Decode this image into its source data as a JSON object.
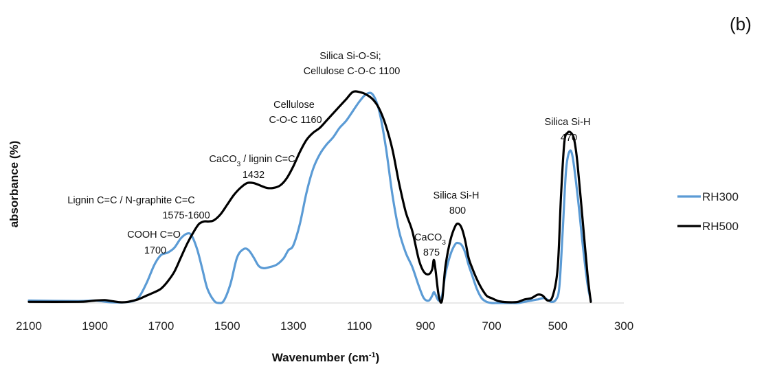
{
  "panel_label": "(b)",
  "chart_data": {
    "type": "line",
    "xlabel": "Wavenumber (cm",
    "xlabel_sup": "-1",
    "xlabel_tail": ")",
    "ylabel": "absorbance (%)",
    "xlim": [
      2100,
      300
    ],
    "x_reversed": true,
    "ylim": [
      0,
      1
    ],
    "x_ticks": [
      "2100",
      "1900",
      "1700",
      "1500",
      "1300",
      "1100",
      "900",
      "700",
      "500",
      "300"
    ],
    "grid": false,
    "legend_position": "right",
    "colors": {
      "RH300": "#5b9bd5",
      "RH500": "#000000"
    },
    "series": [
      {
        "name": "RH300",
        "x": [
          2100,
          1950,
          1900,
          1850,
          1800,
          1770,
          1745,
          1720,
          1700,
          1680,
          1660,
          1640,
          1620,
          1607,
          1590,
          1575,
          1560,
          1540,
          1525,
          1510,
          1490,
          1470,
          1450,
          1435,
          1420,
          1405,
          1390,
          1370,
          1350,
          1330,
          1315,
          1300,
          1280,
          1260,
          1240,
          1220,
          1200,
          1180,
          1160,
          1140,
          1120,
          1100,
          1080,
          1060,
          1040,
          1020,
          1000,
          980,
          960,
          940,
          920,
          905,
          890,
          880,
          875,
          870,
          860,
          850,
          840,
          825,
          810,
          800,
          790,
          780,
          770,
          760,
          745,
          730,
          715,
          700,
          680,
          650,
          620,
          600,
          580,
          560,
          540,
          520,
          505,
          495,
          485,
          475,
          465,
          455,
          440,
          425,
          410,
          400
        ],
        "y": [
          0.01,
          0.008,
          0.01,
          0.003,
          0.004,
          0.02,
          0.08,
          0.16,
          0.2,
          0.21,
          0.23,
          0.27,
          0.29,
          0.28,
          0.22,
          0.14,
          0.06,
          0.01,
          0.0,
          0.01,
          0.08,
          0.19,
          0.225,
          0.22,
          0.19,
          0.155,
          0.145,
          0.15,
          0.16,
          0.185,
          0.22,
          0.24,
          0.33,
          0.46,
          0.56,
          0.62,
          0.66,
          0.69,
          0.73,
          0.76,
          0.8,
          0.84,
          0.87,
          0.87,
          0.8,
          0.65,
          0.45,
          0.3,
          0.21,
          0.15,
          0.07,
          0.02,
          0.01,
          0.03,
          0.045,
          0.035,
          0.01,
          0.03,
          0.12,
          0.2,
          0.245,
          0.25,
          0.24,
          0.21,
          0.16,
          0.12,
          0.06,
          0.02,
          0.005,
          0.0,
          0.0,
          0.0,
          0.0,
          0.005,
          0.01,
          0.015,
          0.02,
          0.005,
          0.015,
          0.07,
          0.3,
          0.55,
          0.63,
          0.61,
          0.45,
          0.25,
          0.08,
          0.01
        ]
      },
      {
        "name": "RH500",
        "x": [
          2100,
          1950,
          1900,
          1870,
          1850,
          1820,
          1800,
          1770,
          1745,
          1720,
          1700,
          1680,
          1660,
          1640,
          1620,
          1600,
          1585,
          1570,
          1555,
          1540,
          1520,
          1500,
          1480,
          1460,
          1440,
          1420,
          1400,
          1380,
          1360,
          1340,
          1320,
          1300,
          1280,
          1260,
          1240,
          1220,
          1200,
          1180,
          1160,
          1140,
          1120,
          1100,
          1080,
          1060,
          1040,
          1020,
          1000,
          980,
          960,
          940,
          920,
          905,
          890,
          880,
          875,
          870,
          860,
          850,
          840,
          825,
          810,
          800,
          790,
          780,
          770,
          760,
          745,
          730,
          715,
          700,
          680,
          660,
          640,
          620,
          600,
          580,
          560,
          545,
          530,
          515,
          500,
          490,
          480,
          470,
          460,
          450,
          440,
          425,
          410,
          400
        ],
        "y": [
          0.005,
          0.005,
          0.01,
          0.012,
          0.008,
          0.003,
          0.005,
          0.015,
          0.03,
          0.045,
          0.06,
          0.09,
          0.13,
          0.19,
          0.25,
          0.3,
          0.33,
          0.34,
          0.34,
          0.345,
          0.37,
          0.41,
          0.45,
          0.48,
          0.5,
          0.5,
          0.49,
          0.48,
          0.48,
          0.49,
          0.52,
          0.57,
          0.63,
          0.68,
          0.71,
          0.73,
          0.76,
          0.79,
          0.82,
          0.85,
          0.88,
          0.88,
          0.87,
          0.85,
          0.81,
          0.74,
          0.64,
          0.5,
          0.38,
          0.3,
          0.18,
          0.13,
          0.12,
          0.14,
          0.18,
          0.14,
          0.03,
          0.01,
          0.15,
          0.26,
          0.32,
          0.33,
          0.31,
          0.26,
          0.19,
          0.15,
          0.1,
          0.06,
          0.03,
          0.02,
          0.008,
          0.004,
          0.003,
          0.005,
          0.015,
          0.02,
          0.035,
          0.03,
          0.01,
          0.03,
          0.15,
          0.45,
          0.67,
          0.71,
          0.71,
          0.68,
          0.58,
          0.35,
          0.12,
          0.005
        ]
      }
    ],
    "annotations": [
      {
        "lines": [
          "COOH C=O",
          "1700"
        ]
      },
      {
        "lines": [
          "Lignin C=C / N-graphite C=C",
          "1575-1600"
        ]
      },
      {
        "lines": [
          "CaCO",
          "1432"
        ],
        "sub": "3",
        "tail": " / lignin C=C"
      },
      {
        "lines": [
          "Cellulose",
          "C-O-C 1160"
        ]
      },
      {
        "lines": [
          "Silica Si-O-Si;",
          "Cellulose C-O-C 1100"
        ]
      },
      {
        "lines": [
          "CaCO",
          "875"
        ],
        "sub": "3"
      },
      {
        "lines": [
          "Silica Si-H",
          "800"
        ]
      },
      {
        "lines": [
          "Silica Si-H",
          "470"
        ]
      }
    ]
  }
}
